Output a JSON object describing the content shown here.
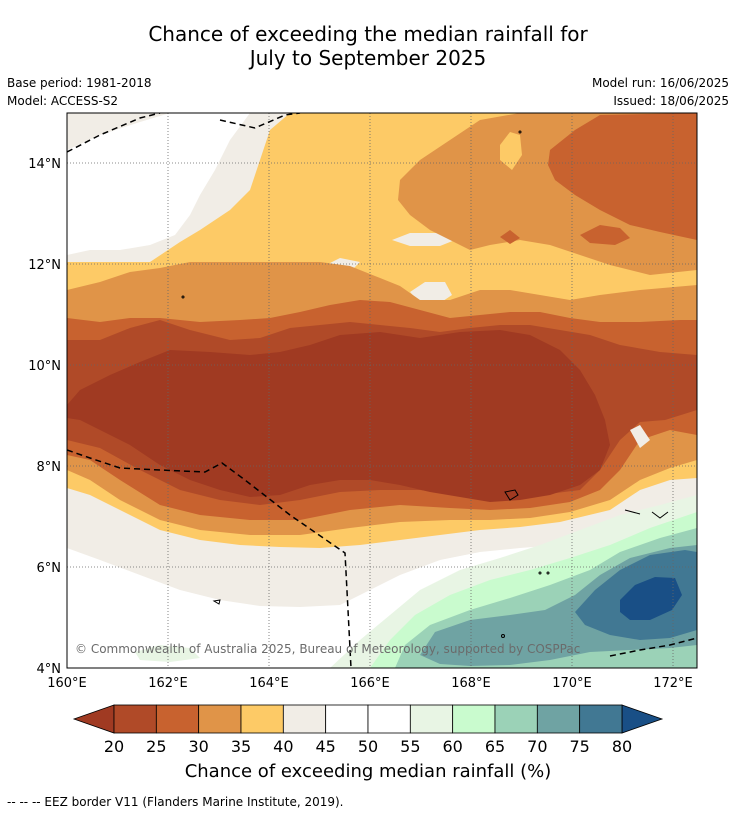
{
  "header": {
    "title_line1": "Chance of exceeding the median rainfall for",
    "title_line2": "July to September 2025",
    "base_period": "Base period: 1981-2018",
    "model": "Model: ACCESS-S2",
    "model_run": "Model run: 16/06/2025",
    "issued": "Issued: 18/06/2025"
  },
  "map": {
    "lat_labels": [
      "14°N",
      "12°N",
      "10°N",
      "8°N",
      "6°N",
      "4°N"
    ],
    "lon_labels": [
      "160°E",
      "162°E",
      "164°E",
      "166°E",
      "168°E",
      "170°E",
      "172°E"
    ],
    "copyright": "© Commonwealth of Australia 2025, Bureau of Meteorology, supported by COSPPac"
  },
  "colorbar": {
    "ticks": [
      "20",
      "25",
      "30",
      "35",
      "40",
      "45",
      "50",
      "55",
      "60",
      "65",
      "70",
      "75",
      "80"
    ],
    "colors": {
      "lt20": "#a03a22",
      "20-25": "#b04a28",
      "25-30": "#c8622f",
      "30-35": "#e09448",
      "35-40": "#fdca66",
      "40-45": "#f1ede6",
      "45-50": "#ffffff",
      "50-55": "#ffffff",
      "55-60": "#e8f5e4",
      "60-65": "#c9fbce",
      "65-70": "#9bd2b7",
      "70-75": "#6fa3a3",
      "75-80": "#417893",
      "gt80": "#194f86"
    },
    "title": "Chance of exceeding median rainfall (%)"
  },
  "footer": {
    "legend_text": "-- -- -- EEZ border V11 (Flanders Marine Institute, 2019)."
  }
}
